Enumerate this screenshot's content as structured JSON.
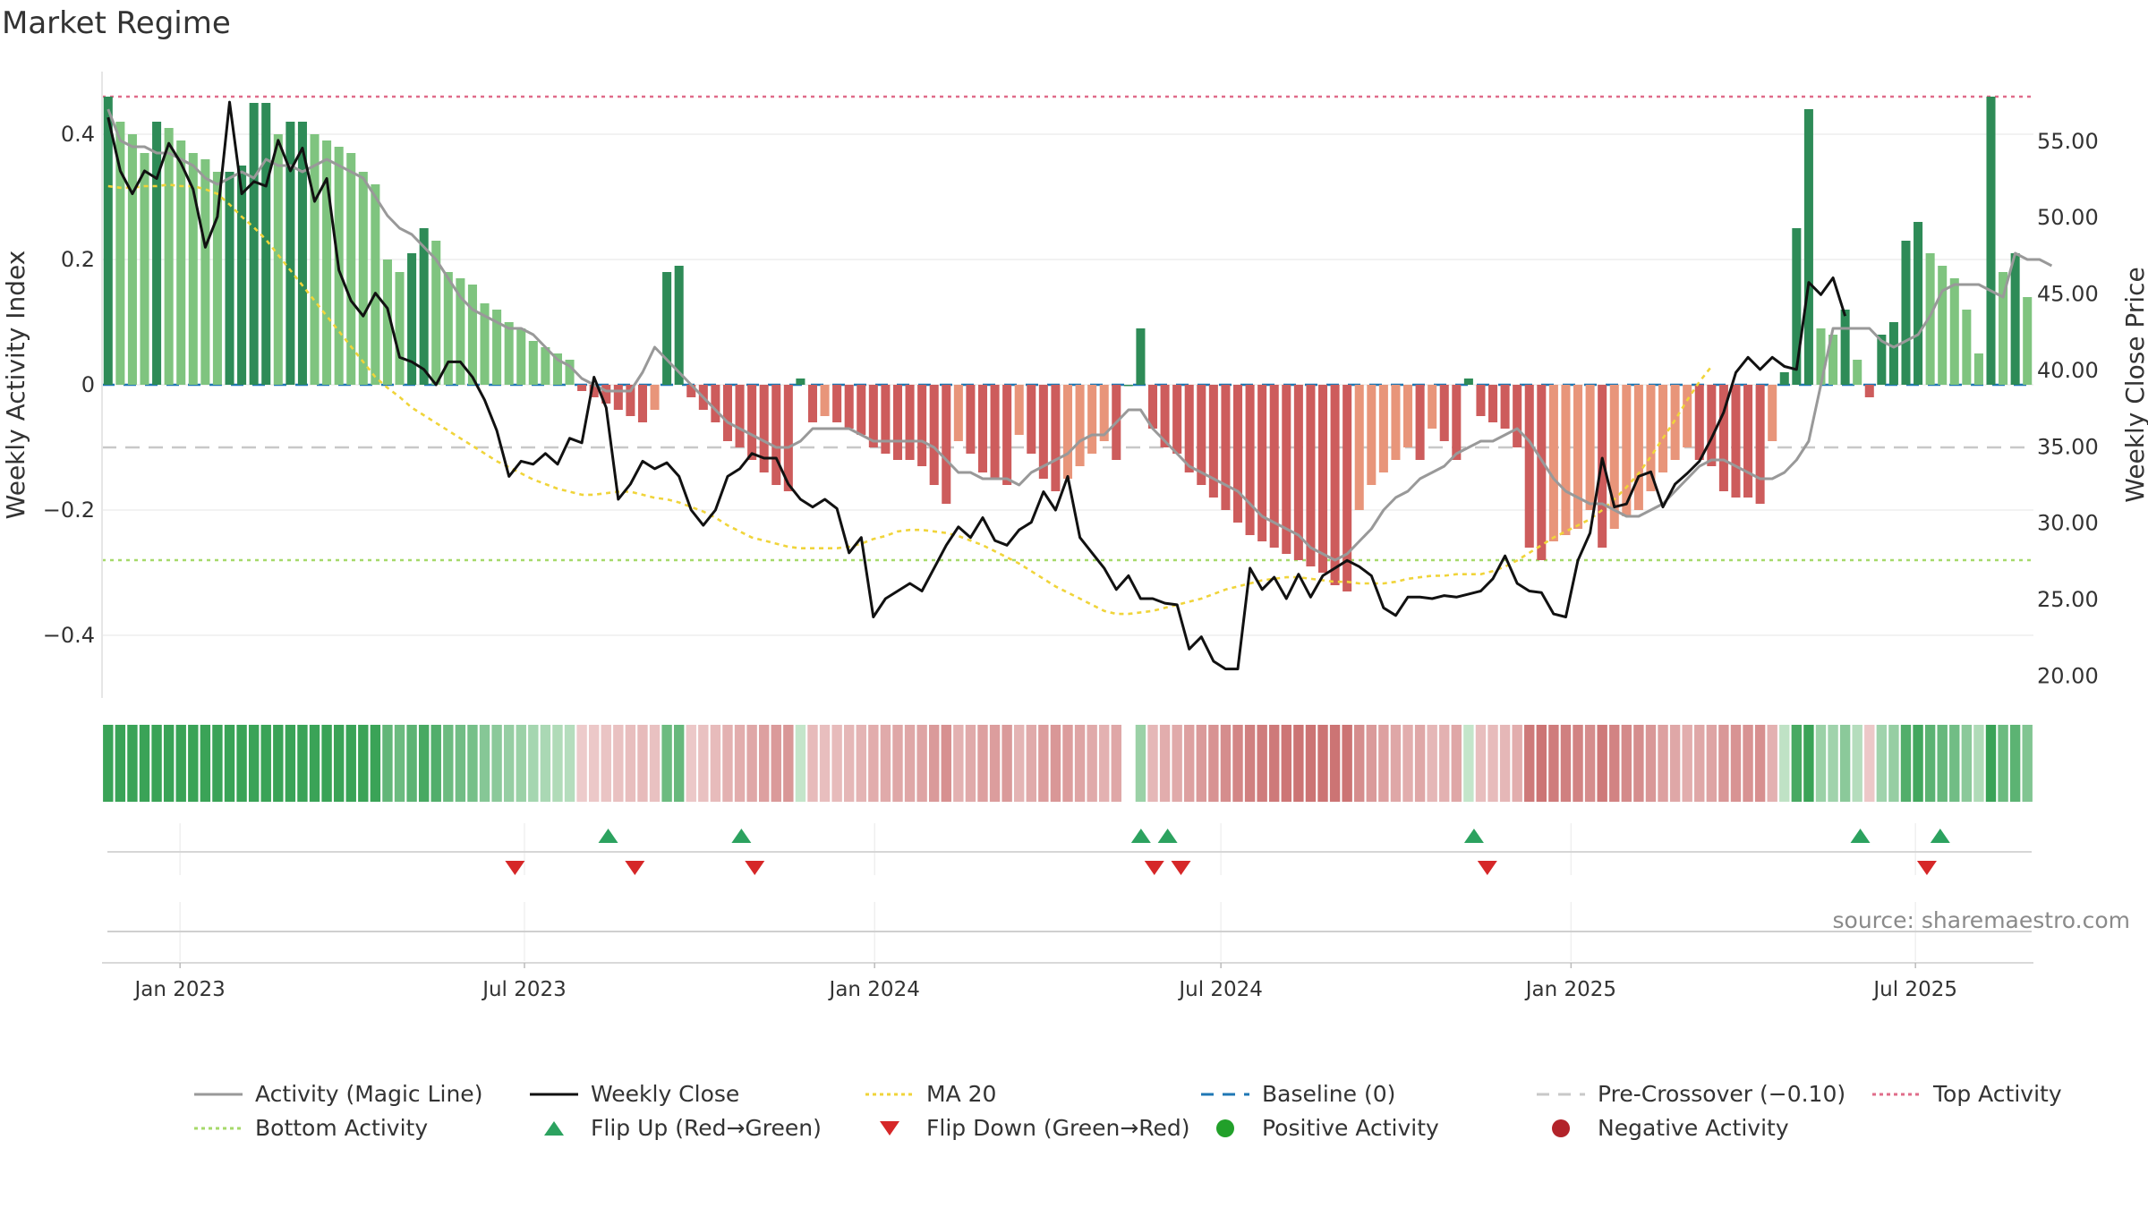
{
  "title": "Market Regime",
  "source_text": "source: sharemaestro.com",
  "colors": {
    "strong_green": "#2e8b57",
    "light_green": "#7fc47f",
    "strong_red": "#cd5c5c",
    "light_red": "#e8957a",
    "magic_line": "#999999",
    "weekly_close": "#111111",
    "ma20": "#f0d43a",
    "baseline": "#1f77b4",
    "pre_crossover": "#c8c8c8",
    "top_activity": "#e06c8a",
    "bottom_activity": "#a6d96a",
    "flip_up": "#2ca25f",
    "flip_down": "#d62728"
  },
  "legend": [
    {
      "label": "Activity (Magic Line)",
      "icon": "solid-gray-line"
    },
    {
      "label": "Weekly Close",
      "icon": "solid-black-line"
    },
    {
      "label": "MA 20",
      "icon": "dotted-yellow-line"
    },
    {
      "label": "Baseline (0)",
      "icon": "dashed-blue-line"
    },
    {
      "label": "Pre-Crossover (−0.10)",
      "icon": "dashed-gray-line"
    },
    {
      "label": "Top Activity",
      "icon": "dotted-pink-line"
    },
    {
      "label": "Bottom Activity",
      "icon": "dotted-green-line"
    },
    {
      "label": "Flip Up (Red→Green)",
      "icon": "green-up-triangle"
    },
    {
      "label": "Flip Down (Green→Red)",
      "icon": "red-down-triangle"
    },
    {
      "label": "Positive Activity",
      "icon": "green-dot"
    },
    {
      "label": "Negative Activity",
      "icon": "red-dot"
    }
  ],
  "chart_data": {
    "type": "bar",
    "title": "Market Regime",
    "ylabel": "Weekly Activity Index",
    "y2label": "Weekly Close Price",
    "ylim": [
      -0.5,
      0.5
    ],
    "y2lim": [
      18.5,
      59.5
    ],
    "yticks": [
      0.4,
      0.2,
      0,
      -0.2,
      -0.4
    ],
    "ytick_labels": [
      "0.4",
      "0.2",
      "0",
      "−0.2",
      "−0.4"
    ],
    "y2ticks": [
      55,
      50,
      45,
      40,
      35,
      30,
      25,
      20
    ],
    "y2tick_labels": [
      "55.00",
      "50.00",
      "45.00",
      "40.00",
      "35.00",
      "30.00",
      "25.00",
      "20.00"
    ],
    "x_start": "2022-11-21",
    "x_end": "2025-09-01",
    "xticks": [
      "2023-01-01",
      "2023-07-01",
      "2024-01-01",
      "2024-07-01",
      "2025-01-01",
      "2025-07-01"
    ],
    "xtick_labels": [
      "Jan 2023",
      "Jul 2023",
      "Jan 2024",
      "Jul 2024",
      "Jan 2025",
      "Jul 2025"
    ],
    "reference_lines": {
      "baseline": 0,
      "pre_crossover": -0.1,
      "top_activity": 0.46,
      "bottom_activity": -0.28
    },
    "activity": [
      0.46,
      0.42,
      0.4,
      0.37,
      0.42,
      0.41,
      0.39,
      0.37,
      0.36,
      0.34,
      0.34,
      0.35,
      0.45,
      0.45,
      0.4,
      0.42,
      0.42,
      0.4,
      0.39,
      0.38,
      0.37,
      0.34,
      0.32,
      0.2,
      0.18,
      0.21,
      0.25,
      0.23,
      0.18,
      0.17,
      0.16,
      0.13,
      0.12,
      0.1,
      0.09,
      0.07,
      0.06,
      0.05,
      0.04,
      -0.01,
      -0.02,
      -0.03,
      -0.04,
      -0.05,
      -0.06,
      -0.04,
      0.18,
      0.19,
      -0.02,
      -0.04,
      -0.06,
      -0.09,
      -0.1,
      -0.12,
      -0.14,
      -0.16,
      -0.17,
      0.01,
      -0.06,
      -0.05,
      -0.06,
      -0.07,
      -0.08,
      -0.1,
      -0.11,
      -0.12,
      -0.12,
      -0.13,
      -0.16,
      -0.19,
      -0.09,
      -0.11,
      -0.14,
      -0.15,
      -0.16,
      -0.08,
      -0.11,
      -0.15,
      -0.17,
      -0.15,
      -0.13,
      -0.11,
      -0.09,
      -0.12,
      0.0,
      0.09,
      -0.07,
      -0.1,
      -0.11,
      -0.14,
      -0.16,
      -0.18,
      -0.2,
      -0.22,
      -0.24,
      -0.25,
      -0.26,
      -0.27,
      -0.28,
      -0.29,
      -0.3,
      -0.32,
      -0.33,
      -0.2,
      -0.16,
      -0.14,
      -0.12,
      -0.1,
      -0.12,
      -0.07,
      -0.09,
      -0.12,
      0.01,
      -0.05,
      -0.06,
      -0.07,
      -0.1,
      -0.26,
      -0.28,
      -0.25,
      -0.24,
      -0.23,
      -0.2,
      -0.26,
      -0.23,
      -0.21,
      -0.2,
      -0.17,
      -0.14,
      -0.12,
      -0.1,
      -0.12,
      -0.13,
      -0.17,
      -0.18,
      -0.18,
      -0.19,
      -0.09,
      0.02,
      0.25,
      0.44,
      0.09,
      0.08,
      0.12,
      0.04,
      -0.02,
      0.08,
      0.1,
      0.23,
      0.26,
      0.21,
      0.19,
      0.17,
      0.12,
      0.05,
      0.46,
      0.18,
      0.21,
      0.14
    ],
    "magic_line": [
      0.44,
      0.39,
      0.38,
      0.38,
      0.37,
      0.37,
      0.36,
      0.35,
      0.33,
      0.32,
      0.33,
      0.34,
      0.33,
      0.36,
      0.35,
      0.35,
      0.34,
      0.35,
      0.36,
      0.35,
      0.34,
      0.33,
      0.3,
      0.27,
      0.25,
      0.24,
      0.22,
      0.2,
      0.17,
      0.14,
      0.12,
      0.11,
      0.1,
      0.09,
      0.09,
      0.08,
      0.06,
      0.04,
      0.03,
      0.01,
      0.0,
      -0.01,
      -0.01,
      -0.01,
      0.02,
      0.06,
      0.04,
      0.02,
      0.0,
      -0.02,
      -0.04,
      -0.06,
      -0.07,
      -0.08,
      -0.09,
      -0.1,
      -0.1,
      -0.09,
      -0.07,
      -0.07,
      -0.07,
      -0.07,
      -0.08,
      -0.09,
      -0.09,
      -0.09,
      -0.09,
      -0.09,
      -0.1,
      -0.12,
      -0.14,
      -0.14,
      -0.15,
      -0.15,
      -0.15,
      -0.16,
      -0.14,
      -0.13,
      -0.12,
      -0.11,
      -0.09,
      -0.08,
      -0.08,
      -0.06,
      -0.04,
      -0.04,
      -0.07,
      -0.09,
      -0.11,
      -0.13,
      -0.14,
      -0.15,
      -0.16,
      -0.17,
      -0.19,
      -0.21,
      -0.22,
      -0.23,
      -0.24,
      -0.26,
      -0.27,
      -0.28,
      -0.27,
      -0.25,
      -0.23,
      -0.2,
      -0.18,
      -0.17,
      -0.15,
      -0.14,
      -0.13,
      -0.11,
      -0.1,
      -0.09,
      -0.09,
      -0.08,
      -0.07,
      -0.09,
      -0.12,
      -0.15,
      -0.17,
      -0.18,
      -0.19,
      -0.19,
      -0.2,
      -0.21,
      -0.21,
      -0.2,
      -0.19,
      -0.17,
      -0.15,
      -0.13,
      -0.12,
      -0.12,
      -0.13,
      -0.14,
      -0.15,
      -0.15,
      -0.14,
      -0.12,
      -0.09,
      0.0,
      0.09,
      0.09,
      0.09,
      0.09,
      0.07,
      0.06,
      0.07,
      0.08,
      0.11,
      0.15,
      0.16,
      0.16,
      0.16,
      0.15,
      0.14,
      0.21,
      0.2,
      0.2,
      0.19
    ],
    "weekly_close": [
      56.5,
      53.0,
      51.5,
      53.0,
      52.5,
      54.8,
      53.5,
      51.8,
      48.0,
      50.0,
      57.5,
      51.5,
      52.3,
      52.0,
      55.0,
      53.0,
      54.5,
      51.0,
      52.5,
      46.5,
      44.5,
      43.5,
      45.0,
      44.0,
      40.8,
      40.5,
      40.0,
      39.0,
      40.5,
      40.5,
      39.5,
      38.0,
      36.0,
      33.0,
      34.0,
      33.8,
      34.5,
      33.8,
      35.5,
      35.2,
      39.5,
      37.5,
      31.5,
      32.5,
      34.0,
      33.5,
      33.9,
      33.0,
      30.8,
      29.8,
      30.8,
      33.0,
      33.5,
      34.5,
      34.2,
      34.2,
      32.5,
      31.5,
      31.0,
      31.5,
      30.9,
      28.0,
      29.0,
      23.8,
      25.0,
      25.5,
      26.0,
      25.5,
      27.0,
      28.5,
      29.7,
      29.0,
      30.3,
      28.8,
      28.5,
      29.5,
      30.0,
      32.0,
      30.8,
      33.0,
      29.0,
      28.0,
      27.0,
      25.6,
      26.5,
      25.0,
      25.0,
      24.7,
      24.6,
      21.7,
      22.5,
      20.9,
      20.4,
      20.4,
      27.0,
      25.6,
      26.4,
      25.0,
      26.6,
      25.1,
      26.5,
      27.0,
      27.5,
      27.1,
      26.5,
      24.4,
      23.9,
      25.1,
      25.1,
      25.0,
      25.2,
      25.1,
      25.3,
      25.5,
      26.3,
      27.8,
      26.0,
      25.5,
      25.4,
      24.0,
      23.8,
      27.5,
      29.3,
      34.2,
      31.0,
      31.2,
      33.0,
      33.3,
      31.0,
      32.5,
      33.2,
      34.0,
      35.5,
      37.2,
      39.8,
      40.8,
      40.0,
      40.8,
      40.2,
      40.0,
      45.7,
      44.9,
      46.0,
      43.5
    ],
    "ma20": [
      52.0,
      51.9,
      51.9,
      52.0,
      52.0,
      52.1,
      52.0,
      52.0,
      51.8,
      51.5,
      50.8,
      50.0,
      49.3,
      48.5,
      47.5,
      46.5,
      45.5,
      44.5,
      43.5,
      42.5,
      41.5,
      40.5,
      39.5,
      38.8,
      38.2,
      37.5,
      37.0,
      36.5,
      36.0,
      35.5,
      35.0,
      34.5,
      34.0,
      33.6,
      33.2,
      32.8,
      32.5,
      32.2,
      32.0,
      31.8,
      31.8,
      31.9,
      32.0,
      32.0,
      31.8,
      31.6,
      31.5,
      31.3,
      31.0,
      30.7,
      30.3,
      29.8,
      29.4,
      29.0,
      28.8,
      28.6,
      28.4,
      28.3,
      28.3,
      28.3,
      28.3,
      28.4,
      28.6,
      28.9,
      29.1,
      29.4,
      29.5,
      29.5,
      29.4,
      29.3,
      29.1,
      28.8,
      28.5,
      28.1,
      27.7,
      27.3,
      26.8,
      26.3,
      25.8,
      25.4,
      25.0,
      24.6,
      24.2,
      24.0,
      24.0,
      24.1,
      24.2,
      24.4,
      24.6,
      24.8,
      25.0,
      25.3,
      25.6,
      25.8,
      26.0,
      26.2,
      26.3,
      26.4,
      26.4,
      26.3,
      26.2,
      26.1,
      26.1,
      26.0,
      26.0,
      26.0,
      26.1,
      26.3,
      26.4,
      26.5,
      26.5,
      26.6,
      26.6,
      26.6,
      26.8,
      27.1,
      27.5,
      28.0,
      28.5,
      29.0,
      29.4,
      29.8,
      30.2,
      30.8,
      31.5,
      32.3,
      33.2,
      34.3,
      35.5,
      36.7,
      38.0,
      39.2,
      40.2
    ],
    "flip_up_dates": [
      "2023-08-14",
      "2023-10-23",
      "2024-05-20",
      "2024-06-03",
      "2024-11-11",
      "2025-06-02",
      "2025-07-14"
    ],
    "flip_down_dates": [
      "2023-06-26",
      "2023-08-28",
      "2023-10-30",
      "2024-05-27",
      "2024-06-10",
      "2024-11-18",
      "2025-07-07"
    ]
  }
}
